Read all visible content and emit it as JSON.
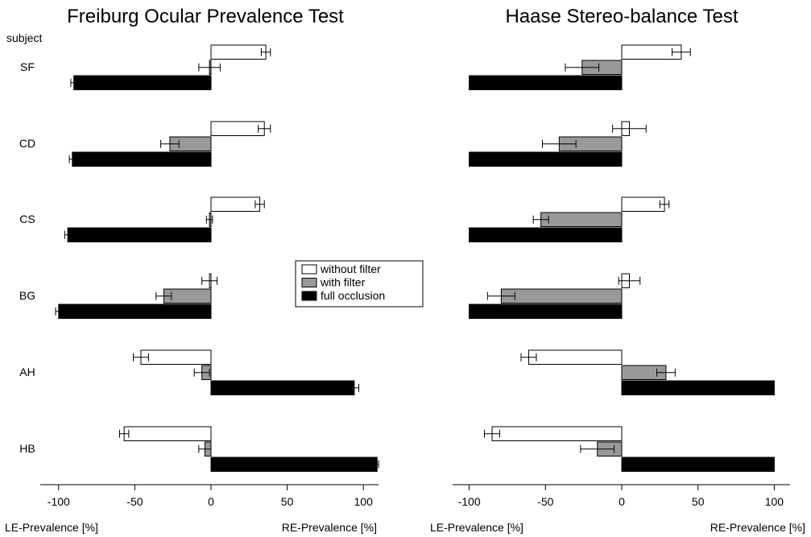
{
  "row_header": "subject",
  "legend": {
    "entries": [
      {
        "name": "without filter",
        "color": "#ffffff"
      },
      {
        "name": "with filter",
        "color": "#999999"
      },
      {
        "name": "full occlusion",
        "color": "#000000"
      }
    ]
  },
  "chart_data": [
    {
      "type": "bar",
      "orientation": "horizontal",
      "title": "Freiburg Ocular Prevalence Test",
      "xlabel_left": "LE-Prevalence [%]",
      "xlabel_right": "RE-Prevalence [%]",
      "xlim": [
        -110,
        110
      ],
      "xticks": [
        -100,
        -50,
        0,
        50,
        100
      ],
      "categories": [
        "SF",
        "CD",
        "CS",
        "BG",
        "AH",
        "HB"
      ],
      "series": [
        {
          "name": "without filter",
          "color": "#ffffff",
          "values": [
            36,
            35,
            32,
            -1,
            -46,
            -57
          ],
          "errors": [
            3,
            4,
            3,
            5,
            5,
            3
          ]
        },
        {
          "name": "with filter",
          "color": "#999999",
          "values": [
            -1,
            -27,
            -1,
            -31,
            -6,
            -4
          ],
          "errors": [
            7,
            6,
            2,
            5,
            5,
            4
          ]
        },
        {
          "name": "full occlusion",
          "color": "#000000",
          "values": [
            -90,
            -91,
            -94,
            -100,
            94,
            109
          ],
          "errors": [
            2,
            2,
            2,
            2,
            3,
            1
          ]
        }
      ]
    },
    {
      "type": "bar",
      "orientation": "horizontal",
      "title": "Haase Stereo-balance Test",
      "xlabel_left": "LE-Prevalence [%]",
      "xlabel_right": "RE-Prevalence [%]",
      "xlim": [
        -110,
        110
      ],
      "xticks": [
        -100,
        -50,
        0,
        50,
        100
      ],
      "categories": [
        "SF",
        "CD",
        "CS",
        "BG",
        "AH",
        "HB"
      ],
      "series": [
        {
          "name": "without filter",
          "color": "#ffffff",
          "values": [
            39,
            5,
            28,
            5,
            -61,
            -85
          ],
          "errors": [
            6,
            11,
            3,
            7,
            5,
            5
          ]
        },
        {
          "name": "with filter",
          "color": "#999999",
          "values": [
            -26,
            -41,
            -53,
            -79,
            29,
            -16
          ],
          "errors": [
            11,
            11,
            5,
            9,
            6,
            11
          ]
        },
        {
          "name": "full occlusion",
          "color": "#000000",
          "values": [
            -100,
            -100,
            -100,
            -100,
            100,
            100
          ],
          "errors": [
            0,
            0,
            0,
            0,
            0,
            0
          ]
        }
      ]
    }
  ]
}
